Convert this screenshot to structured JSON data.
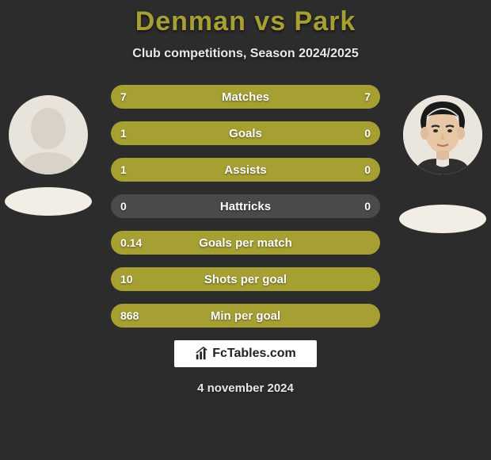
{
  "title_color": "#a6a033",
  "title": "Denman vs Park",
  "subtitle": "Club competitions, Season 2024/2025",
  "left_color": "#a6a033",
  "right_color": "#a6a033",
  "neutral_color": "#4a4a4a",
  "background_color": "#2c2c2c",
  "text_color": "#ffffff",
  "label_fontsize": 15,
  "value_fontsize": 14,
  "title_fontsize": 34,
  "subtitle_fontsize": 16,
  "bars": [
    {
      "label": "Matches",
      "left": "7",
      "right": "7",
      "left_pct": 50,
      "right_pct": 50
    },
    {
      "label": "Goals",
      "left": "1",
      "right": "0",
      "left_pct": 76,
      "right_pct": 24
    },
    {
      "label": "Assists",
      "left": "1",
      "right": "0",
      "left_pct": 76,
      "right_pct": 24
    },
    {
      "label": "Hattricks",
      "left": "0",
      "right": "0",
      "left_pct": 50,
      "right_pct": 50,
      "neutral": true
    },
    {
      "label": "Goals per match",
      "left": "0.14",
      "right": "",
      "left_pct": 100,
      "right_pct": 0
    },
    {
      "label": "Shots per goal",
      "left": "10",
      "right": "",
      "left_pct": 100,
      "right_pct": 0
    },
    {
      "label": "Min per goal",
      "left": "868",
      "right": "",
      "left_pct": 100,
      "right_pct": 0
    }
  ],
  "watermark": "FcTables.com",
  "date": "4 november 2024",
  "players": {
    "left": {
      "name": "Denman",
      "has_photo": false
    },
    "right": {
      "name": "Park",
      "has_photo": true
    }
  }
}
